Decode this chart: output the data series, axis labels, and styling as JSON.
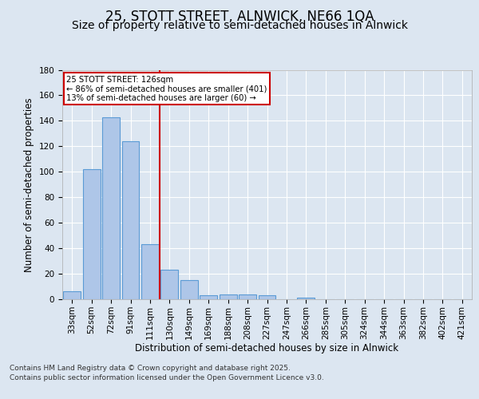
{
  "title_line1": "25, STOTT STREET, ALNWICK, NE66 1QA",
  "title_line2": "Size of property relative to semi-detached houses in Alnwick",
  "xlabel": "Distribution of semi-detached houses by size in Alnwick",
  "ylabel": "Number of semi-detached properties",
  "categories": [
    "33sqm",
    "52sqm",
    "72sqm",
    "91sqm",
    "111sqm",
    "130sqm",
    "149sqm",
    "169sqm",
    "188sqm",
    "208sqm",
    "227sqm",
    "247sqm",
    "266sqm",
    "285sqm",
    "305sqm",
    "324sqm",
    "344sqm",
    "363sqm",
    "382sqm",
    "402sqm",
    "421sqm"
  ],
  "values": [
    6,
    102,
    143,
    124,
    43,
    23,
    15,
    3,
    4,
    4,
    3,
    0,
    1,
    0,
    0,
    0,
    0,
    0,
    0,
    0,
    0
  ],
  "bar_color": "#aec6e8",
  "bar_edge_color": "#5b9bd5",
  "background_color": "#dce6f1",
  "plot_bg_color": "#dce6f1",
  "grid_color": "#ffffff",
  "vline_x": 4.5,
  "vline_color": "#cc0000",
  "annotation_title": "25 STOTT STREET: 126sqm",
  "annotation_line2": "← 86% of semi-detached houses are smaller (401)",
  "annotation_line3": "13% of semi-detached houses are larger (60) →",
  "annotation_box_color": "#cc0000",
  "ylim": [
    0,
    180
  ],
  "yticks": [
    0,
    20,
    40,
    60,
    80,
    100,
    120,
    140,
    160,
    180
  ],
  "footer_line1": "Contains HM Land Registry data © Crown copyright and database right 2025.",
  "footer_line2": "Contains public sector information licensed under the Open Government Licence v3.0.",
  "title_fontsize": 12,
  "subtitle_fontsize": 10,
  "axis_label_fontsize": 8.5,
  "tick_fontsize": 7.5,
  "footer_fontsize": 6.5
}
